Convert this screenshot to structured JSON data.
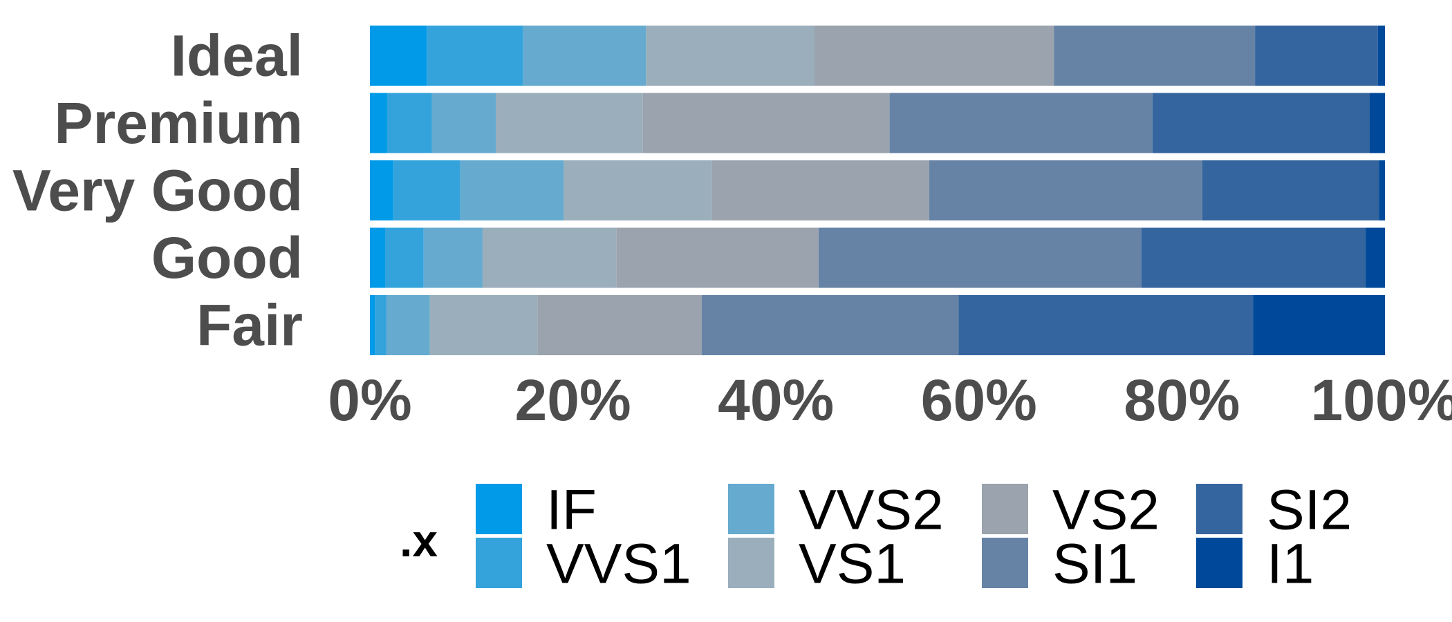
{
  "chart_data": {
    "type": "bar",
    "orientation": "horizontal",
    "stacked": true,
    "normalized": true,
    "categories": [
      "Ideal",
      "Premium",
      "Very Good",
      "Good",
      "Fair"
    ],
    "x_ticks": [
      "0%",
      "20%",
      "40%",
      "60%",
      "80%",
      "100%"
    ],
    "xlim": [
      0,
      1
    ],
    "grid": false,
    "legend_title": ".x",
    "legend_position": "bottom",
    "series": [
      {
        "name": "IF",
        "color": "#009ae8",
        "values": [
          0.056,
          0.017,
          0.023,
          0.015,
          0.005
        ]
      },
      {
        "name": "VVS1",
        "color": "#34a3dc",
        "values": [
          0.095,
          0.044,
          0.066,
          0.038,
          0.011
        ]
      },
      {
        "name": "VVS2",
        "color": "#66aacf",
        "values": [
          0.121,
          0.063,
          0.102,
          0.058,
          0.043
        ]
      },
      {
        "name": "VS1",
        "color": "#9aaebb",
        "values": [
          0.166,
          0.145,
          0.146,
          0.132,
          0.106
        ]
      },
      {
        "name": "VS2",
        "color": "#9aa3ae",
        "values": [
          0.236,
          0.243,
          0.214,
          0.199,
          0.162
        ]
      },
      {
        "name": "SI1",
        "color": "#6683a6",
        "values": [
          0.198,
          0.259,
          0.269,
          0.318,
          0.253
        ]
      },
      {
        "name": "SI2",
        "color": "#34659e",
        "values": [
          0.121,
          0.214,
          0.174,
          0.221,
          0.29
        ]
      },
      {
        "name": "I1",
        "color": "#004899",
        "values": [
          0.007,
          0.015,
          0.006,
          0.019,
          0.13
        ]
      }
    ]
  }
}
